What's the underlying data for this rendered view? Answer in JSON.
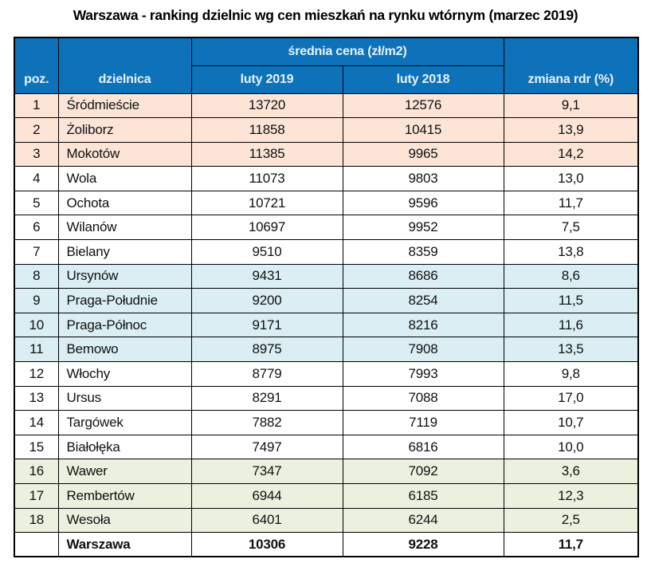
{
  "title": "Warszawa - ranking dzielnic wg cen mieszkań na rynku wtórnym (marzec 2019)",
  "colors": {
    "header_bg": "#0d72b9",
    "header_text": "#eaf2fa",
    "header_divider": "#1c4a76",
    "border": "#000000",
    "text": "#111111",
    "group_peach": "#fce4d6",
    "group_white": "#ffffff",
    "group_blue": "#daeef3",
    "group_green": "#ebf1de"
  },
  "chart_data": {
    "type": "table",
    "title": "Warszawa - ranking dzielnic wg cen mieszkań na rynku wtórnym (marzec 2019)",
    "header": {
      "poz": "poz.",
      "dzielnica": "dzielnica",
      "price_group": "średnia cena (zł/m2)",
      "feb2019": "luty 2019",
      "feb2018": "luty 2018",
      "change": "zmiana rdr (%)"
    },
    "rows": [
      {
        "poz": "1",
        "dzielnica": "Śródmieście",
        "feb2019": "13720",
        "feb2018": "12576",
        "change": "9,1",
        "group": "peach"
      },
      {
        "poz": "2",
        "dzielnica": "Żoliborz",
        "feb2019": "11858",
        "feb2018": "10415",
        "change": "13,9",
        "group": "peach"
      },
      {
        "poz": "3",
        "dzielnica": "Mokotów",
        "feb2019": "11385",
        "feb2018": "9965",
        "change": "14,2",
        "group": "peach"
      },
      {
        "poz": "4",
        "dzielnica": "Wola",
        "feb2019": "11073",
        "feb2018": "9803",
        "change": "13,0",
        "group": "white"
      },
      {
        "poz": "5",
        "dzielnica": "Ochota",
        "feb2019": "10721",
        "feb2018": "9596",
        "change": "11,7",
        "group": "white"
      },
      {
        "poz": "6",
        "dzielnica": "Wilanów",
        "feb2019": "10697",
        "feb2018": "9952",
        "change": "7,5",
        "group": "white"
      },
      {
        "poz": "7",
        "dzielnica": "Bielany",
        "feb2019": "9510",
        "feb2018": "8359",
        "change": "13,8",
        "group": "white"
      },
      {
        "poz": "8",
        "dzielnica": "Ursynów",
        "feb2019": "9431",
        "feb2018": "8686",
        "change": "8,6",
        "group": "blue"
      },
      {
        "poz": "9",
        "dzielnica": "Praga-Południe",
        "feb2019": "9200",
        "feb2018": "8254",
        "change": "11,5",
        "group": "blue"
      },
      {
        "poz": "10",
        "dzielnica": "Praga-Północ",
        "feb2019": "9171",
        "feb2018": "8216",
        "change": "11,6",
        "group": "blue"
      },
      {
        "poz": "11",
        "dzielnica": "Bemowo",
        "feb2019": "8975",
        "feb2018": "7908",
        "change": "13,5",
        "group": "blue"
      },
      {
        "poz": "12",
        "dzielnica": "Włochy",
        "feb2019": "8779",
        "feb2018": "7993",
        "change": "9,8",
        "group": "white"
      },
      {
        "poz": "13",
        "dzielnica": "Ursus",
        "feb2019": "8291",
        "feb2018": "7088",
        "change": "17,0",
        "group": "white"
      },
      {
        "poz": "14",
        "dzielnica": "Targówek",
        "feb2019": "7882",
        "feb2018": "7119",
        "change": "10,7",
        "group": "white"
      },
      {
        "poz": "15",
        "dzielnica": "Białołęka",
        "feb2019": "7497",
        "feb2018": "6816",
        "change": "10,0",
        "group": "white"
      },
      {
        "poz": "16",
        "dzielnica": "Wawer",
        "feb2019": "7347",
        "feb2018": "7092",
        "change": "3,6",
        "group": "green"
      },
      {
        "poz": "17",
        "dzielnica": "Rembertów",
        "feb2019": "6944",
        "feb2018": "6185",
        "change": "12,3",
        "group": "green"
      },
      {
        "poz": "18",
        "dzielnica": "Wesoła",
        "feb2019": "6401",
        "feb2018": "6244",
        "change": "2,5",
        "group": "green"
      },
      {
        "poz": "",
        "dzielnica": "Warszawa",
        "feb2019": "10306",
        "feb2018": "9228",
        "change": "11,7",
        "group": "summary"
      }
    ]
  }
}
